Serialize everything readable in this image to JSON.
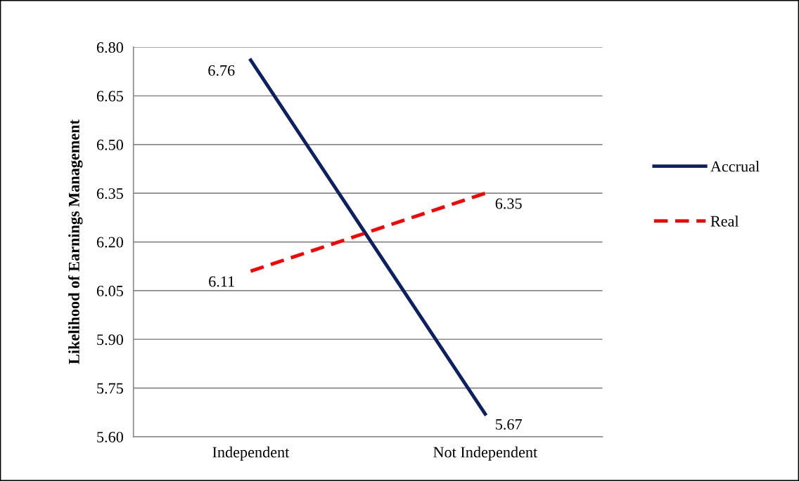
{
  "chart_data": {
    "type": "line",
    "ylabel": "Likelihood of Earnings Management",
    "categories": [
      "Independent",
      "Not Independent"
    ],
    "series": [
      {
        "name": "Accrual",
        "color": "#0d2063",
        "values": [
          6.76,
          5.67
        ],
        "line_style": "solid"
      },
      {
        "name": "Real",
        "color": "#ff0000",
        "values": [
          6.11,
          6.35
        ],
        "line_style": "dashed"
      }
    ],
    "ylim": [
      5.6,
      6.8
    ],
    "yticks": [
      {
        "value": 5.6,
        "label": "5.60"
      },
      {
        "value": 5.75,
        "label": "5.75"
      },
      {
        "value": 5.9,
        "label": "5.90"
      },
      {
        "value": 6.05,
        "label": "6.05"
      },
      {
        "value": 6.2,
        "label": "6.20"
      },
      {
        "value": 6.35,
        "label": "6.35"
      },
      {
        "value": 6.5,
        "label": "6.50"
      },
      {
        "value": 6.65,
        "label": "6.65"
      },
      {
        "value": 6.8,
        "label": "6.80"
      }
    ],
    "grid": "y",
    "legend": "right",
    "data_labels": true,
    "marker": "none"
  }
}
